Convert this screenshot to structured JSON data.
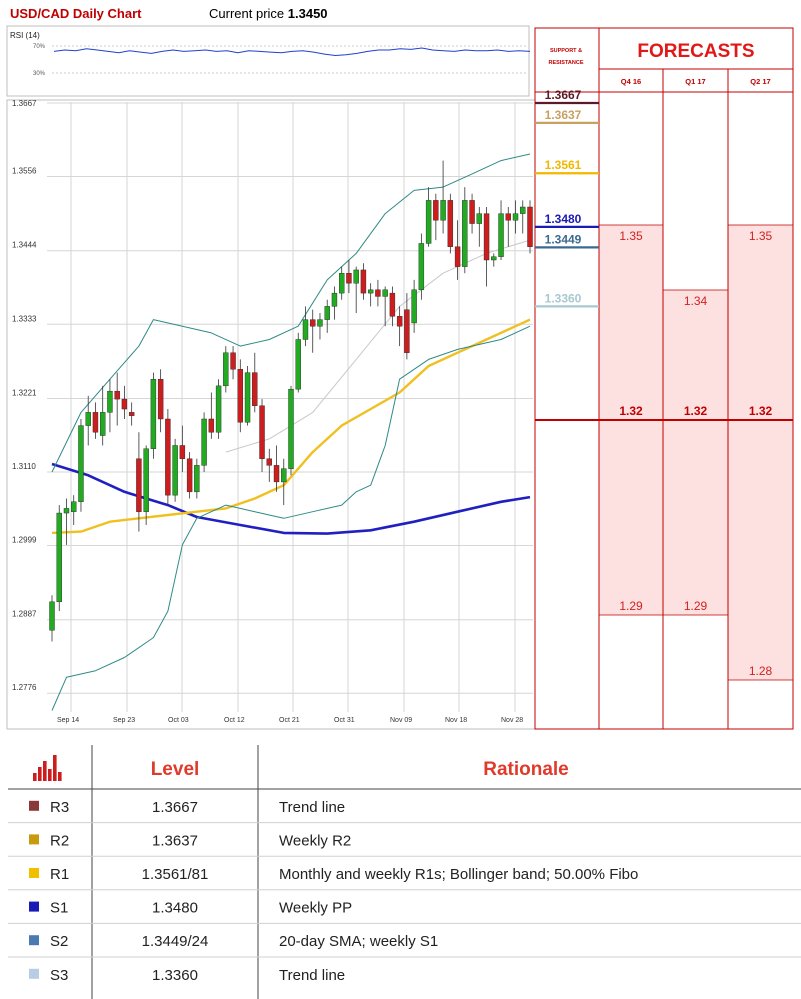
{
  "header": {
    "title": "USD/CAD Daily Chart",
    "price_label": "Current price",
    "price_value": "1.3450"
  },
  "rsi": {
    "label": "RSI (14)",
    "level_high": "70%",
    "level_low": "30%"
  },
  "forecasts": {
    "title": "FORECASTS",
    "sr_label_line1": "SUPPORT &",
    "sr_label_line2": "RESISTANCE",
    "periods": [
      "Q4 16",
      "Q1 17",
      "Q2 17"
    ],
    "columns": [
      {
        "period": "Q4 16",
        "high": 1.35,
        "mid": 1.32,
        "low": 1.29,
        "high_label": "1.35",
        "mid_label": "1.32",
        "low_label": "1.29"
      },
      {
        "period": "Q1 17",
        "high": 1.34,
        "mid": 1.32,
        "low": 1.29,
        "high_label": "1.34",
        "mid_label": "1.32",
        "low_label": "1.29"
      },
      {
        "period": "Q2 17",
        "high": 1.35,
        "mid": 1.32,
        "low": 1.28,
        "high_label": "1.35",
        "mid_label": "1.32",
        "low_label": "1.28"
      }
    ],
    "colors": {
      "band": "#fde0e0",
      "line": "#c00000",
      "text": "#d42020"
    }
  },
  "chart_data": {
    "type": "candlestick",
    "y_ticks": [
      "1.3667",
      "1.3556",
      "1.3444",
      "1.3333",
      "1.3221",
      "1.3110",
      "1.2999",
      "1.2887",
      "1.2776"
    ],
    "ylim": [
      1.2722,
      1.3667
    ],
    "x_ticks": [
      "Sep 14",
      "Sep 23",
      "Oct 03",
      "Oct 12",
      "Oct 21",
      "Oct 31",
      "Nov 09",
      "Nov 18",
      "Nov 28"
    ],
    "candles": [
      [
        1.2871,
        1.2924,
        1.2854,
        1.2914
      ],
      [
        1.2914,
        1.306,
        1.29,
        1.3048
      ],
      [
        1.3048,
        1.307,
        1.3,
        1.3055
      ],
      [
        1.305,
        1.3075,
        1.303,
        1.3065
      ],
      [
        1.3065,
        1.319,
        1.305,
        1.318
      ],
      [
        1.318,
        1.3225,
        1.315,
        1.32
      ],
      [
        1.32,
        1.3215,
        1.316,
        1.317
      ],
      [
        1.3165,
        1.324,
        1.315,
        1.32
      ],
      [
        1.32,
        1.325,
        1.317,
        1.3232
      ],
      [
        1.3232,
        1.326,
        1.318,
        1.322
      ],
      [
        1.322,
        1.324,
        1.319,
        1.3205
      ],
      [
        1.32,
        1.3215,
        1.318,
        1.3195
      ],
      [
        1.313,
        1.317,
        1.302,
        1.305
      ],
      [
        1.305,
        1.315,
        1.303,
        1.3145
      ],
      [
        1.3145,
        1.326,
        1.313,
        1.325
      ],
      [
        1.325,
        1.3265,
        1.317,
        1.319
      ],
      [
        1.319,
        1.3205,
        1.306,
        1.3075
      ],
      [
        1.3075,
        1.316,
        1.3065,
        1.315
      ],
      [
        1.315,
        1.318,
        1.311,
        1.313
      ],
      [
        1.313,
        1.314,
        1.307,
        1.308
      ],
      [
        1.308,
        1.313,
        1.307,
        1.312
      ],
      [
        1.312,
        1.32,
        1.311,
        1.319
      ],
      [
        1.319,
        1.323,
        1.316,
        1.317
      ],
      [
        1.317,
        1.325,
        1.316,
        1.324
      ],
      [
        1.324,
        1.33,
        1.323,
        1.329
      ],
      [
        1.329,
        1.33,
        1.325,
        1.3265
      ],
      [
        1.3265,
        1.328,
        1.317,
        1.3185
      ],
      [
        1.3185,
        1.327,
        1.318,
        1.326
      ],
      [
        1.326,
        1.329,
        1.32,
        1.321
      ],
      [
        1.321,
        1.322,
        1.311,
        1.313
      ],
      [
        1.313,
        1.3145,
        1.3095,
        1.312
      ],
      [
        1.312,
        1.315,
        1.308,
        1.3095
      ],
      [
        1.3095,
        1.313,
        1.306,
        1.3115
      ],
      [
        1.3115,
        1.324,
        1.3105,
        1.3235
      ],
      [
        1.3235,
        1.332,
        1.323,
        1.331
      ],
      [
        1.331,
        1.336,
        1.33,
        1.334
      ],
      [
        1.334,
        1.3355,
        1.329,
        1.333
      ],
      [
        1.333,
        1.335,
        1.331,
        1.334
      ],
      [
        1.334,
        1.337,
        1.332,
        1.336
      ],
      [
        1.336,
        1.339,
        1.334,
        1.338
      ],
      [
        1.338,
        1.342,
        1.337,
        1.341
      ],
      [
        1.341,
        1.343,
        1.338,
        1.3395
      ],
      [
        1.3395,
        1.342,
        1.335,
        1.3415
      ],
      [
        1.3415,
        1.3425,
        1.337,
        1.338
      ],
      [
        1.338,
        1.3395,
        1.336,
        1.3385
      ],
      [
        1.3385,
        1.34,
        1.336,
        1.3375
      ],
      [
        1.3375,
        1.339,
        1.333,
        1.3385
      ],
      [
        1.338,
        1.339,
        1.333,
        1.3345
      ],
      [
        1.3345,
        1.336,
        1.33,
        1.333
      ],
      [
        1.3355,
        1.338,
        1.328,
        1.329
      ],
      [
        1.3335,
        1.34,
        1.332,
        1.3385
      ],
      [
        1.3385,
        1.347,
        1.337,
        1.3455
      ],
      [
        1.3455,
        1.354,
        1.345,
        1.352
      ],
      [
        1.352,
        1.353,
        1.346,
        1.349
      ],
      [
        1.349,
        1.358,
        1.347,
        1.352
      ],
      [
        1.352,
        1.353,
        1.344,
        1.345
      ],
      [
        1.345,
        1.349,
        1.34,
        1.342
      ],
      [
        1.342,
        1.354,
        1.341,
        1.352
      ],
      [
        1.352,
        1.353,
        1.347,
        1.3485
      ],
      [
        1.3485,
        1.351,
        1.345,
        1.35
      ],
      [
        1.35,
        1.351,
        1.339,
        1.343
      ],
      [
        1.343,
        1.344,
        1.342,
        1.3435
      ],
      [
        1.3435,
        1.352,
        1.343,
        1.35
      ],
      [
        1.35,
        1.351,
        1.345,
        1.349
      ],
      [
        1.349,
        1.352,
        1.347,
        1.35
      ],
      [
        1.35,
        1.352,
        1.347,
        1.351
      ],
      [
        1.351,
        1.352,
        1.344,
        1.345
      ]
    ],
    "series": [
      {
        "kind": "sma_long",
        "color": "#2020c0",
        "values": [
          [
            0,
            1.3122
          ],
          [
            5,
            1.3105
          ],
          [
            10,
            1.308
          ],
          [
            16,
            1.306
          ],
          [
            20,
            1.3042
          ],
          [
            26,
            1.303
          ],
          [
            32,
            1.3018
          ],
          [
            38,
            1.3017
          ],
          [
            44,
            1.3022
          ],
          [
            50,
            1.3035
          ],
          [
            56,
            1.305
          ],
          [
            62,
            1.3065
          ],
          [
            66,
            1.3072
          ]
        ]
      },
      {
        "kind": "sma_mid",
        "color": "#f0c020",
        "values": [
          [
            0,
            1.3018
          ],
          [
            4,
            1.302
          ],
          [
            8,
            1.3035
          ],
          [
            12,
            1.304
          ],
          [
            16,
            1.3045
          ],
          [
            20,
            1.305
          ],
          [
            24,
            1.3055
          ],
          [
            28,
            1.307
          ],
          [
            32,
            1.309
          ],
          [
            36,
            1.314
          ],
          [
            40,
            1.318
          ],
          [
            44,
            1.3205
          ],
          [
            48,
            1.323
          ],
          [
            52,
            1.327
          ],
          [
            56,
            1.329
          ],
          [
            60,
            1.331
          ],
          [
            64,
            1.333
          ],
          [
            66,
            1.334
          ]
        ]
      },
      {
        "kind": "sma_short",
        "color": "#c8c8c8",
        "values": [
          [
            24,
            1.314
          ],
          [
            30,
            1.316
          ],
          [
            36,
            1.32
          ],
          [
            42,
            1.328
          ],
          [
            48,
            1.336
          ],
          [
            54,
            1.341
          ],
          [
            60,
            1.344
          ],
          [
            66,
            1.346
          ]
        ]
      },
      {
        "kind": "bb_upper",
        "color": "#2f8a86",
        "values": [
          [
            0,
            1.311
          ],
          [
            4,
            1.32
          ],
          [
            8,
            1.325
          ],
          [
            12,
            1.33
          ],
          [
            14,
            1.334
          ],
          [
            18,
            1.333
          ],
          [
            22,
            1.332
          ],
          [
            26,
            1.33
          ],
          [
            30,
            1.331
          ],
          [
            34,
            1.333
          ],
          [
            38,
            1.34
          ],
          [
            42,
            1.344
          ],
          [
            46,
            1.35
          ],
          [
            50,
            1.3535
          ],
          [
            54,
            1.354
          ],
          [
            58,
            1.356
          ],
          [
            62,
            1.358
          ],
          [
            66,
            1.359
          ]
        ]
      },
      {
        "kind": "bb_lower",
        "color": "#2f8a86",
        "values": [
          [
            0,
            1.275
          ],
          [
            2,
            1.28
          ],
          [
            6,
            1.281
          ],
          [
            10,
            1.283
          ],
          [
            14,
            1.286
          ],
          [
            16,
            1.29
          ],
          [
            18,
            1.3
          ],
          [
            20,
            1.304
          ],
          [
            24,
            1.306
          ],
          [
            28,
            1.305
          ],
          [
            32,
            1.304
          ],
          [
            36,
            1.305
          ],
          [
            40,
            1.306
          ],
          [
            42,
            1.308
          ],
          [
            44,
            1.309
          ],
          [
            46,
            1.315
          ],
          [
            48,
            1.325
          ],
          [
            52,
            1.328
          ],
          [
            56,
            1.3295
          ],
          [
            62,
            1.331
          ],
          [
            66,
            1.333
          ]
        ]
      }
    ],
    "rsi_values": [
      62,
      64,
      63,
      66,
      64,
      62,
      60,
      63,
      61,
      59,
      62,
      64,
      62,
      63,
      64,
      62,
      63,
      60,
      63,
      62,
      61,
      60,
      62,
      63,
      61,
      58,
      56,
      57,
      59,
      62,
      64,
      64,
      66,
      65,
      67,
      64,
      63,
      62,
      64,
      63,
      63,
      64,
      62,
      63,
      62
    ],
    "levels": [
      {
        "value": 1.3667,
        "label": "1.3667",
        "color": "#5a1a28"
      },
      {
        "value": 1.3637,
        "label": "1.3637",
        "color": "#c8a060"
      },
      {
        "value": 1.3561,
        "label": "1.3561",
        "color": "#f0b800"
      },
      {
        "value": 1.348,
        "label": "1.3480",
        "color": "#1a1ab4"
      },
      {
        "value": 1.3449,
        "label": "1.3449",
        "color": "#3a6a90"
      },
      {
        "value": 1.336,
        "label": "1.3360",
        "color": "#a8c8d0"
      }
    ],
    "colors": {
      "up": "#22aa22",
      "down": "#cc1e1e"
    }
  },
  "table": {
    "header": {
      "level": "Level",
      "rationale": "Rationale"
    },
    "rows": [
      {
        "name": "R3",
        "level": "1.3667",
        "rationale": "Trend line",
        "color": "#8b3a3a"
      },
      {
        "name": "R2",
        "level": "1.3637",
        "rationale": "Weekly R2",
        "color": "#c89a10"
      },
      {
        "name": "R1",
        "level": "1.3561/81",
        "rationale": "Monthly and weekly R1s; Bollinger band; 50.00% Fibo",
        "color": "#f0c000"
      },
      {
        "name": "S1",
        "level": "1.3480",
        "rationale": "Weekly PP",
        "color": "#1a1ab4"
      },
      {
        "name": "S2",
        "level": "1.3449/24",
        "rationale": "20-day SMA; weekly S1",
        "color": "#4a7ab0"
      },
      {
        "name": "S3",
        "level": "1.3360",
        "rationale": "Trend line",
        "color": "#b8cce4"
      }
    ]
  }
}
